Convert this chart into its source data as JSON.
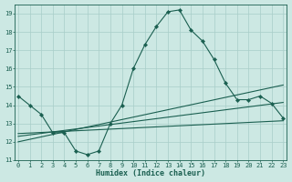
{
  "xlabel": "Humidex (Indice chaleur)",
  "bg_color": "#cce8e3",
  "grid_color": "#a8cdc8",
  "line_color": "#1a5f50",
  "xlim": [
    -0.3,
    23.3
  ],
  "ylim": [
    11,
    19.5
  ],
  "yticks": [
    11,
    12,
    13,
    14,
    15,
    16,
    17,
    18,
    19
  ],
  "xticks": [
    0,
    1,
    2,
    3,
    4,
    5,
    6,
    7,
    8,
    9,
    10,
    11,
    12,
    13,
    14,
    15,
    16,
    17,
    18,
    19,
    20,
    21,
    22,
    23
  ],
  "main_x": [
    0,
    1,
    2,
    3,
    4,
    5,
    6,
    7,
    8,
    9,
    10,
    11,
    12,
    13,
    14,
    15,
    16,
    17,
    18,
    19,
    20,
    21,
    22,
    23
  ],
  "main_y": [
    14.5,
    14.0,
    13.5,
    12.5,
    12.5,
    11.5,
    11.3,
    11.5,
    13.0,
    14.0,
    16.0,
    17.3,
    18.3,
    19.1,
    19.2,
    18.1,
    17.5,
    16.5,
    15.2,
    14.3,
    14.3,
    14.5,
    14.1,
    13.3
  ],
  "line2_x": [
    0,
    23
  ],
  "line2_y": [
    12.5,
    13.3
  ],
  "line3_x": [
    0,
    23
  ],
  "line3_y": [
    12.3,
    14.2
  ],
  "line4_x": [
    0,
    23
  ],
  "line4_y": [
    12.1,
    15.2
  ],
  "line5_x": [
    0,
    23
  ],
  "line5_y": [
    12.0,
    14.7
  ]
}
